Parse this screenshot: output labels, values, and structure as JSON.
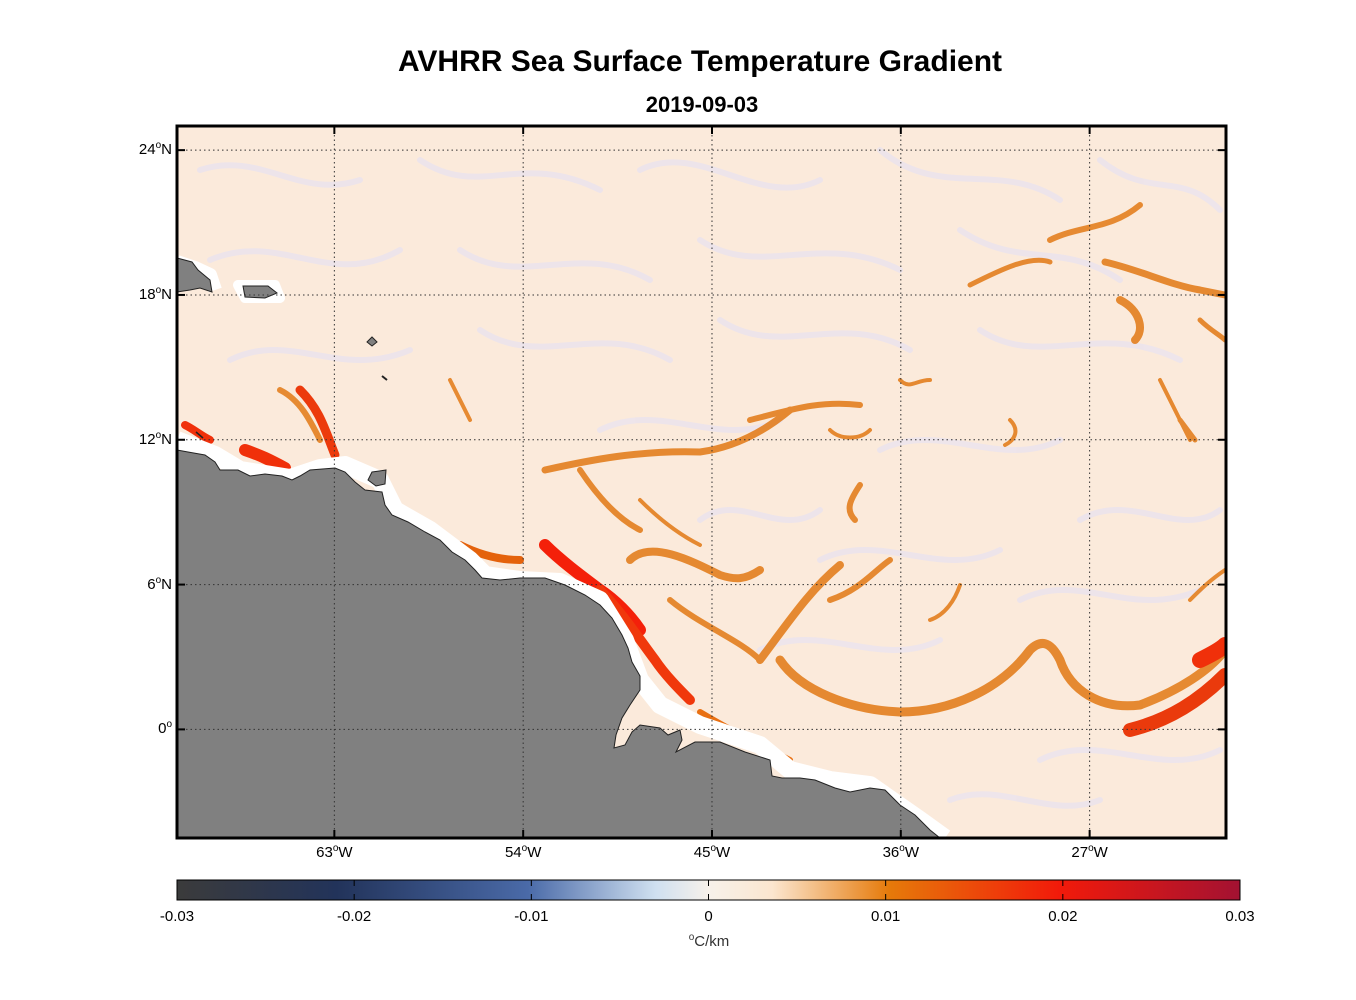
{
  "figure": {
    "title": "AVHRR Sea Surface Temperature Gradient",
    "date": "2019-09-03"
  },
  "map": {
    "lat_range": [
      -4.5,
      25
    ],
    "lon_range": [
      -70.5,
      -20.5
    ],
    "lat_ticks": [
      {
        "value": 24,
        "deg": "24",
        "hemi": "N"
      },
      {
        "value": 18,
        "deg": "18",
        "hemi": "N"
      },
      {
        "value": 12,
        "deg": "12",
        "hemi": "N"
      },
      {
        "value": 6,
        "deg": "6",
        "hemi": "N"
      },
      {
        "value": 0,
        "deg": "0",
        "hemi": ""
      }
    ],
    "lon_ticks": [
      {
        "value": -63,
        "deg": "63",
        "hemi": "W"
      },
      {
        "value": -54,
        "deg": "54",
        "hemi": "W"
      },
      {
        "value": -45,
        "deg": "45",
        "hemi": "W"
      },
      {
        "value": -36,
        "deg": "36",
        "hemi": "W"
      },
      {
        "value": -27,
        "deg": "27",
        "hemi": "W"
      }
    ],
    "grid": true,
    "land_color": "#808080",
    "ocean_background": "#fbeadb"
  },
  "colorbar": {
    "ticks": [
      "-0.03",
      "-0.02",
      "-0.01",
      "0",
      "0.01",
      "0.02",
      "0.03"
    ],
    "unit_deg": "o",
    "unit": "C/km",
    "colors": [
      "#3b3b3b",
      "#22335a",
      "#4a6aa8",
      "#cfe0f0",
      "#fdf1e2",
      "#ea7a08",
      "#f01808",
      "#a01030"
    ]
  }
}
